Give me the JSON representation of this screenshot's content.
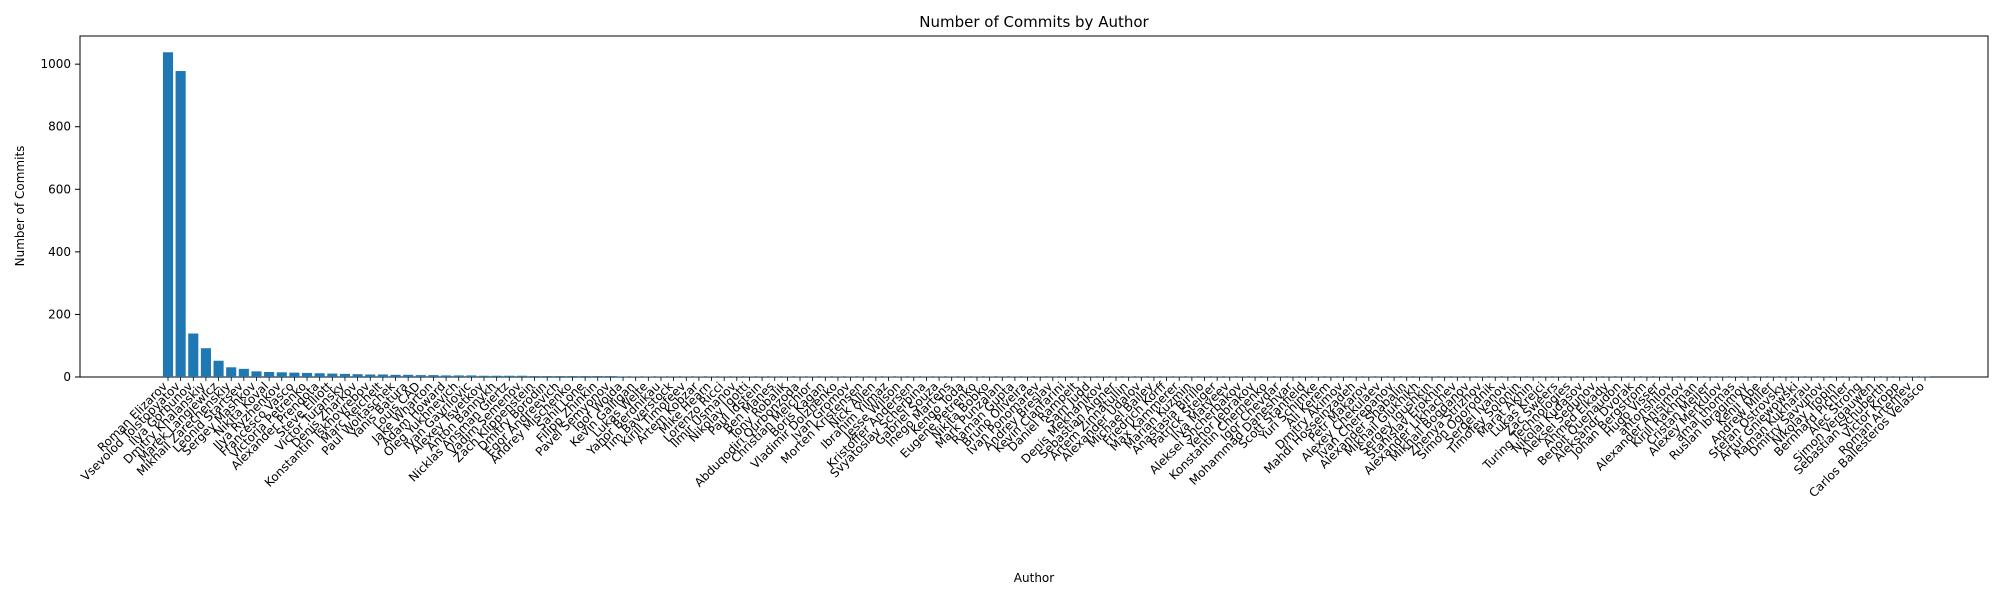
{
  "chart_data": {
    "type": "bar",
    "title": "Number of Commits by Author",
    "xlabel": "Author",
    "ylabel": "Number of Commits",
    "ylim": [
      0,
      1090
    ],
    "yticks": [
      0,
      200,
      400,
      600,
      800,
      1000
    ],
    "grid": false,
    "bar_color": "#1f77b4",
    "categories": [
      "Roman Elizarov",
      "Vsevolod Tolstopyatov",
      "Ilya Gorbunov",
      "Dmitry Khalanskiy",
      "Marek Langiewicz",
      "Mikhail Zarechenskiy",
      "Leonid Startsev",
      "Sergey Mashkov",
      "Nikita Koval",
      "Ilya Ryzhenkov",
      "Francesco Vasco",
      "Victoria Petrenko",
      "Alexander Prendota",
      "Steve Elliott",
      "Victor Turansky",
      "Denis Zharkov",
      "Konstantin Tskhovrebov",
      "Marc Reichelt",
      "Paul Woitaschek",
      "Yanis Batura",
      "Louis CAD",
      "Jake Wharton",
      "Adam Howard",
      "Oleg Yukhnevich",
      "Ivan Gavrilovic",
      "Alexey Tsvetkov",
      "Anton Bannykh",
      "Nicklas Ansman Giertz",
      "Vadim Semenov",
      "Zach Klippenstein",
      "Dmitry Borodin",
      "Egor Andreevich",
      "Andrey Mischenko",
      "Sahil Lone",
      "Filipp Zhinkin",
      "Pavel Semyonov",
      "Igor Wojda",
      "Kevin Galligan",
      "Lukas Welte",
      "Yahor Berdnikau",
      "Tim Baverstock",
      "Kirill Timofeev",
      "Artem Kobzar",
      "Mike Hearn",
      "Lorenzo Ricci",
      "Ilmir Usmanov",
      "Nikolay Igotti",
      "Paul Idstein",
      "Ben Manes",
      "Tony Robalik",
      "Abduqodiri Qurbonzoda",
      "Christian Melchior",
      "Boris Kagan",
      "Vladimir Dolzhenko",
      "Ivan Gromov",
      "Morten Kristensen",
      "Nick Allen",
      "Ibrahim Yilmaz",
      "Jesse Wilson",
      "Kristoffer Andersen",
      "Svyatoslav Scherbina",
      "Gabriel Souza",
      "Inego Martens",
      "Kengo Toda",
      "Eugene Petrenko",
      "Nikita Bobko",
      "Mark Punzalan",
      "Raman Gupta",
      "Bruno Oliveira",
      "Ivan Ponomarev",
      "Andrey Breslav",
      "Kevin Cianfarini",
      "Daniel Rampelt",
      "Sam Judd",
      "Denis Mekhanikov",
      "Sebastian Aigner",
      "Artem Zinnatullin",
      "Alexander Udalov",
      "Michael Bailey",
      "Friedrich Korff",
      "Max Kammerer",
      "Marian Kuzmin",
      "Anastasia Birillo",
      "Patrick Steiger",
      "Ilya Matveev",
      "Aleksei Shcherbakov",
      "Yehor Jebrakov",
      "Konstantin Chernenko",
      "Igor Chevdar",
      "Mohammad Daneshvar",
      "Scott Stanfield",
      "Yuri Schimke",
      "Ali Kerem",
      "Dmitry Akimov",
      "Mahdi Hosseinzadeh",
      "Petr Makarov",
      "Alexey Chekulaev",
      "Ivan Cherepanov",
      "Alexander Shabalin",
      "Mikhail Glukhikh",
      "Sergey Igushkin",
      "Stanislav Erokhin",
      "Alexander Likhachev",
      "Mikhail Bogdanov",
      "Zhenya Strizhov",
      "Simon Ogorodnik",
      "Sergei Ivanov",
      "Timofey Solonin",
      "Marat Akhin",
      "Lukas Krejci",
      "Zac Sweers",
      "Turing Technologies",
      "Nikolai Kudasov",
      "Aleksei Sedunov",
      "Ahmed Elkady",
      "Benoit Quenaudon",
      "Aleksandr Dvorak",
      "Johan Bergstrom",
      "Hugo Visser",
      "antonshilov",
      "Alexander Anisimov",
      "Kirill Rakhman",
      "Cristan Meijer",
      "Alexey Merkulov",
      "amal thomas",
      "Ruslan Ibragimov",
      "Kenji Abe",
      "Andrew Miller",
      "Stefan Ostrovsky",
      "Artur Gniewowski",
      "Raman Kukharau",
      "Dmitry Savvinov",
      "Nikolay Tropin",
      "Bernhard Pichler",
      "Alec Strong",
      "Simon Vergauwen",
      "Sebastian Schuberth",
      "Victor Kropp",
      "Roman Artemev",
      "Carlos Ballesteros Velasco"
    ],
    "values": [
      1038,
      978,
      139,
      92,
      52,
      31,
      26,
      18,
      16,
      15,
      14,
      13,
      12,
      11,
      10,
      9,
      8,
      8,
      7,
      7,
      6,
      6,
      5,
      5,
      5,
      4,
      4,
      4,
      4,
      3,
      3,
      3,
      3,
      3,
      3,
      3,
      2,
      2,
      2,
      2,
      2,
      2,
      2,
      2,
      2,
      2,
      2,
      2,
      1,
      1,
      1,
      1,
      1,
      1,
      1,
      1,
      1,
      1,
      1,
      1,
      1,
      1,
      1,
      1,
      1,
      1,
      1,
      1,
      1,
      1,
      1,
      1,
      1,
      1,
      1,
      1,
      1,
      1,
      1,
      1,
      1,
      1,
      1,
      1,
      1,
      1,
      1,
      1,
      1,
      1,
      1,
      1,
      1,
      1,
      1,
      1,
      1,
      1,
      1,
      1,
      1,
      1,
      1,
      1,
      1,
      1,
      1,
      1,
      1,
      1,
      1,
      1,
      1,
      1,
      1,
      1,
      1,
      1,
      1,
      1,
      1,
      1,
      1,
      1,
      1,
      1,
      1,
      1,
      1,
      1,
      1,
      1,
      1,
      1,
      1,
      1,
      1,
      1,
      1,
      1
    ]
  }
}
